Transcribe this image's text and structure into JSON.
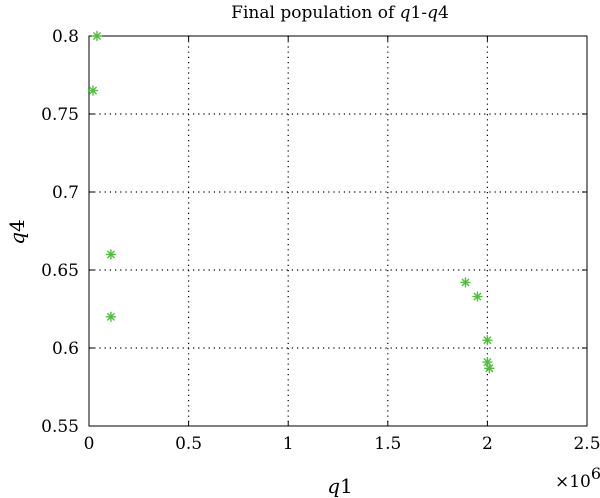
{
  "chart_data": {
    "type": "scatter",
    "title": "Final population of q1-q4",
    "title_parts": [
      "Final population of ",
      "q",
      "1-",
      "q",
      "4"
    ],
    "xlabel": "q1",
    "xlabel_parts": [
      "q",
      "1"
    ],
    "ylabel": "q4",
    "ylabel_parts": [
      "q",
      "4"
    ],
    "x_multiplier": "×10",
    "x_multiplier_exp": "6",
    "xlim": [
      0,
      2.5
    ],
    "ylim": [
      0.55,
      0.8
    ],
    "x_ticks": [
      0,
      0.5,
      1,
      1.5,
      2,
      2.5
    ],
    "x_tick_labels": [
      "0",
      "0.5",
      "1",
      "1.5",
      "2",
      "2.5"
    ],
    "y_ticks": [
      0.55,
      0.6,
      0.65,
      0.7,
      0.75,
      0.8
    ],
    "y_tick_labels": [
      "0.55",
      "0.6",
      "0.65",
      "0.7",
      "0.75",
      "0.8"
    ],
    "grid": true,
    "marker": "*",
    "color": "#4fbf3a",
    "series": [
      {
        "points": [
          {
            "x": 0.04,
            "y": 0.8
          },
          {
            "x": 0.02,
            "y": 0.765
          },
          {
            "x": 0.11,
            "y": 0.66
          },
          {
            "x": 0.11,
            "y": 0.62
          },
          {
            "x": 1.89,
            "y": 0.642
          },
          {
            "x": 1.95,
            "y": 0.633
          },
          {
            "x": 2.0,
            "y": 0.605
          },
          {
            "x": 2.0,
            "y": 0.591
          },
          {
            "x": 2.01,
            "y": 0.587
          }
        ]
      }
    ]
  }
}
